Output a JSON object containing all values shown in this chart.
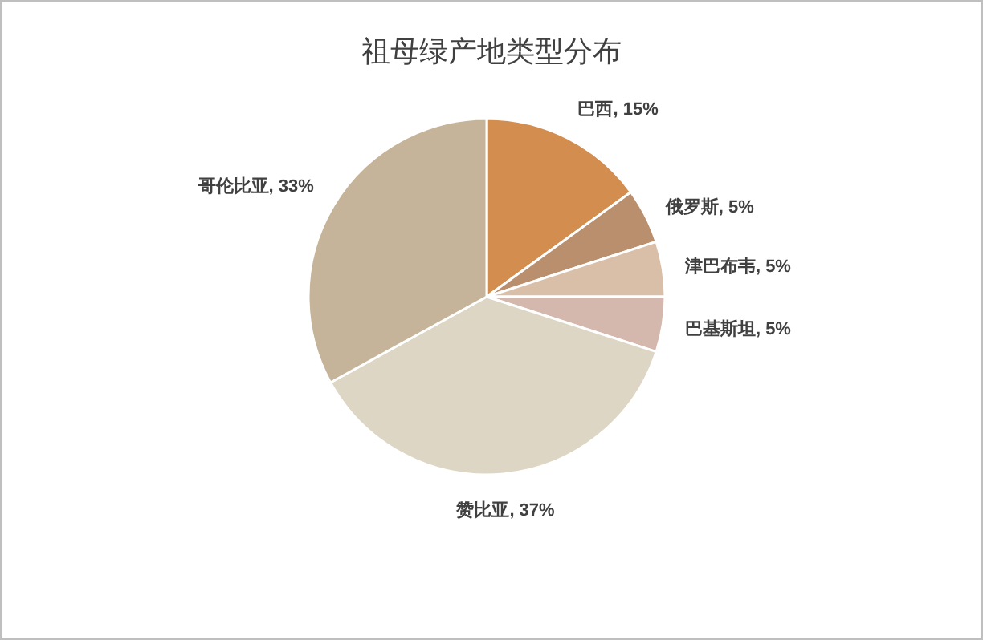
{
  "chart_data": {
    "type": "pie",
    "title": "祖母绿产地类型分布",
    "categories": [
      "巴西",
      "俄罗斯",
      "津巴布韦",
      "巴基斯坦",
      "赞比亚",
      "哥伦比亚"
    ],
    "values": [
      15,
      5,
      5,
      5,
      37,
      33
    ],
    "value_labels": [
      "15%",
      "5%",
      "5%",
      "5%",
      "37%",
      "33%"
    ],
    "colors": [
      "#d38d4f",
      "#b98f6e",
      "#d9bfa8",
      "#d4b8ad",
      "#ddd6c4",
      "#c5b39a"
    ]
  }
}
